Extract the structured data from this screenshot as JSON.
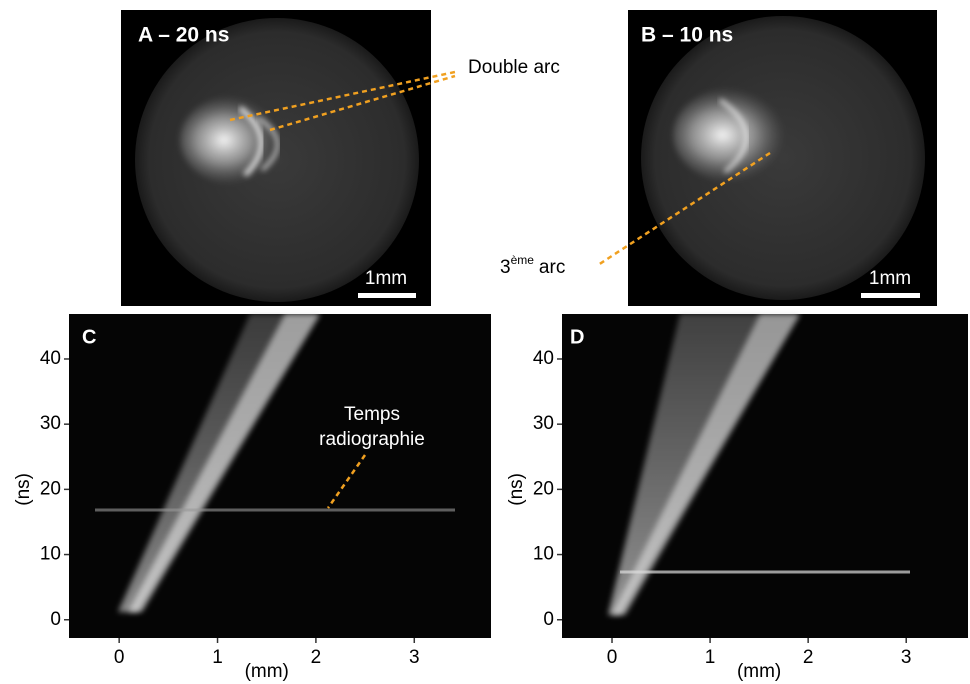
{
  "panels": [
    {
      "label": "A – 20 ns",
      "scale_bar": "1mm"
    },
    {
      "label": "B – 10 ns",
      "scale_bar": "1mm"
    },
    {
      "label": "C",
      "x_label": "(mm)",
      "y_label": "(ns)",
      "xlim": [
        -0.51,
        3.78
      ],
      "ylim": [
        -2.8,
        46.9
      ],
      "xticks": [
        0,
        1,
        2,
        3
      ],
      "yticks": [
        0,
        10,
        20,
        30,
        40
      ]
    },
    {
      "label": "D",
      "x_label": "(mm)",
      "y_label": "(ns)",
      "xlim": [
        -0.51,
        3.63
      ],
      "ylim": [
        -2.8,
        46.9
      ],
      "xticks": [
        0,
        1,
        2,
        3
      ],
      "yticks": [
        0,
        10,
        20,
        30,
        40
      ]
    }
  ],
  "annotations": {
    "double_arc": "Double arc",
    "third_arc_number": "3",
    "third_arc_superscript": "ème",
    "third_arc_word": "arc",
    "time_line1": "Temps",
    "time_line2": "radiographie"
  }
}
